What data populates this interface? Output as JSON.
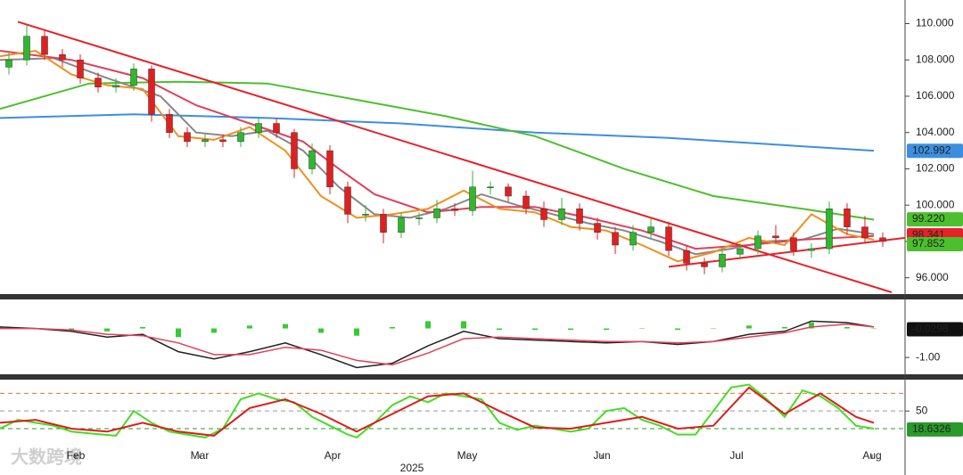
{
  "watermark": "大数跨境",
  "chart_data": [
    {
      "type": "candlestick",
      "x": [
        0.5,
        1.5,
        2.5,
        3.5,
        4.5,
        5.5,
        6.5,
        7.5,
        8.5,
        9.5,
        10.5,
        11.5,
        12.5,
        13.5,
        14.5,
        15.5,
        16.5,
        17.5,
        18.5,
        19.5,
        20.5,
        21.5,
        22.5,
        23.5,
        24.5,
        25.5,
        26.5,
        27.5,
        28.5,
        29.5,
        30.5,
        31.5,
        32.5,
        33.5,
        34.5,
        35.5,
        36.5,
        37.5,
        38.5,
        39.5,
        40.5,
        41.5,
        42.5,
        43.5,
        44.5,
        45.5,
        46.5,
        47.5,
        48.5,
        49.5
      ],
      "open": [
        107.6,
        108.0,
        109.3,
        108.3,
        108.0,
        107.0,
        106.5,
        106.6,
        107.5,
        105.0,
        104.0,
        103.5,
        103.6,
        103.5,
        104.0,
        104.5,
        104.0,
        102.0,
        103.0,
        101.0,
        99.5,
        99.5,
        98.5,
        99.3,
        99.3,
        99.8,
        99.7,
        101.0,
        101.0,
        100.5,
        99.8,
        99.2,
        99.8,
        99.0,
        98.5,
        97.8,
        98.5,
        98.8,
        97.5,
        96.8,
        96.6,
        97.3,
        97.6,
        98.3,
        98.2,
        97.5,
        97.6,
        99.8,
        98.8,
        98.2
      ],
      "high": [
        108.4,
        109.9,
        109.6,
        108.6,
        108.3,
        107.3,
        107.0,
        107.8,
        107.7,
        105.3,
        104.3,
        103.9,
        103.9,
        104.3,
        104.8,
        104.8,
        104.2,
        103.4,
        103.3,
        101.3,
        100.0,
        99.8,
        99.6,
        99.6,
        100.3,
        100.1,
        101.9,
        101.3,
        101.2,
        100.8,
        100.2,
        100.4,
        100.1,
        99.3,
        98.8,
        98.9,
        99.3,
        99.1,
        97.8,
        97.1,
        97.6,
        97.9,
        98.6,
        98.9,
        98.5,
        97.9,
        100.2,
        100.1,
        99.4,
        98.5
      ],
      "low": [
        107.2,
        107.7,
        108.0,
        107.6,
        106.7,
        106.2,
        106.2,
        106.3,
        104.6,
        103.7,
        103.2,
        103.2,
        103.2,
        103.2,
        103.7,
        103.7,
        101.5,
        101.7,
        100.6,
        99.0,
        99.1,
        97.9,
        98.2,
        98.9,
        99.0,
        99.4,
        99.4,
        100.6,
        100.2,
        99.5,
        98.8,
        98.9,
        98.6,
        98.1,
        97.3,
        97.5,
        98.2,
        97.2,
        96.4,
        96.2,
        96.3,
        97.0,
        97.3,
        97.9,
        97.2,
        97.1,
        97.3,
        98.4,
        97.9,
        97.7
      ],
      "close": [
        108.0,
        109.3,
        108.3,
        108.0,
        107.0,
        106.5,
        106.6,
        107.5,
        105.0,
        104.0,
        103.5,
        103.6,
        103.5,
        104.0,
        104.5,
        104.0,
        102.0,
        103.0,
        101.0,
        99.5,
        99.5,
        98.5,
        99.3,
        99.3,
        99.8,
        99.7,
        101.0,
        101.0,
        100.5,
        99.8,
        99.2,
        99.8,
        99.0,
        98.5,
        97.8,
        98.5,
        98.8,
        97.5,
        96.8,
        96.6,
        97.3,
        97.6,
        98.3,
        98.2,
        97.5,
        97.6,
        99.8,
        98.8,
        98.2,
        98.0
      ],
      "up_color": "#2eb82e",
      "down_color": "#e02020",
      "xlim": [
        0,
        50.75
      ],
      "ylim": [
        95.1,
        111.3
      ],
      "yticks": [
        {
          "value": 96,
          "label": "96.000"
        },
        {
          "value": 98,
          "label": "98.000"
        },
        {
          "value": 100,
          "label": "100.000"
        },
        {
          "value": 102,
          "label": "102.000"
        },
        {
          "value": 104,
          "label": "104.000"
        },
        {
          "value": 106,
          "label": "106.000"
        },
        {
          "value": 108,
          "label": "108.000"
        },
        {
          "value": 110,
          "label": "110.000"
        }
      ],
      "lines": [
        {
          "color": "#3b8fe0",
          "width": 2,
          "x": [
            0,
            7.5,
            15,
            22.5,
            30,
            37.5,
            49
          ],
          "values": [
            104.8,
            105.0,
            104.8,
            104.5,
            104.0,
            103.7,
            103.0
          ]
        },
        {
          "color": "#4cc02c",
          "width": 2,
          "x": [
            0,
            5,
            10,
            15,
            20,
            25,
            30,
            35,
            40,
            45,
            49
          ],
          "values": [
            105.3,
            106.7,
            106.8,
            106.7,
            105.8,
            104.9,
            103.8,
            102.0,
            100.5,
            99.8,
            99.2
          ]
        },
        {
          "color": "#888888",
          "width": 2,
          "x": [
            0,
            3,
            6,
            9,
            11,
            13,
            15,
            17,
            19,
            21,
            23,
            25,
            27,
            29,
            31,
            33,
            35,
            37,
            39,
            41,
            43,
            45,
            47,
            49
          ],
          "values": [
            108.0,
            108.1,
            107.0,
            106.0,
            104.0,
            103.8,
            104.1,
            103.0,
            101.0,
            99.5,
            99.3,
            99.8,
            100.6,
            100.0,
            99.5,
            99.0,
            98.6,
            98.0,
            97.3,
            97.6,
            98.0,
            98.1,
            98.7,
            98.4
          ]
        },
        {
          "color": "#e0405a",
          "width": 2,
          "x": [
            0,
            4,
            8,
            11,
            14,
            17,
            19,
            21,
            24,
            27,
            30,
            33,
            36,
            39,
            42,
            45,
            49
          ],
          "values": [
            108.5,
            108.0,
            107.0,
            105.5,
            104.5,
            103.5,
            102.0,
            100.6,
            99.6,
            99.9,
            99.9,
            99.3,
            98.6,
            97.6,
            97.8,
            98.1,
            98.3
          ]
        },
        {
          "color": "#f0901c",
          "width": 2,
          "x": [
            0,
            2,
            4,
            6,
            8,
            10,
            12,
            14,
            16,
            18,
            20,
            22,
            24,
            26,
            28,
            30,
            32,
            34,
            36,
            38,
            40,
            42,
            44,
            45.5,
            47.5,
            49
          ],
          "values": [
            108.2,
            108.5,
            107.2,
            106.6,
            106.4,
            103.8,
            103.6,
            104.3,
            103.0,
            100.5,
            99.3,
            99.5,
            99.8,
            100.8,
            99.8,
            99.6,
            98.8,
            98.6,
            97.8,
            96.9,
            97.4,
            98.2,
            97.8,
            99.5,
            98.4,
            98.1
          ]
        },
        {
          "color": "#e8202a",
          "width": 2,
          "x": [
            1,
            50
          ],
          "values": [
            110.1,
            95.2
          ]
        },
        {
          "color": "#e8202a",
          "width": 2,
          "x": [
            37.5,
            50.75
          ],
          "values": [
            96.6,
            98.2
          ]
        }
      ],
      "price_labels": [
        {
          "value": 102.992,
          "label": "102.992",
          "color": "#3b8fe0"
        },
        {
          "value": 99.22,
          "label": "99.220",
          "color": "#4cc02c"
        },
        {
          "value": 98.341,
          "label": "98.341",
          "color": "#e8202a"
        },
        {
          "value": 97.852,
          "label": "97.852",
          "color": "#4cc02c"
        }
      ]
    },
    {
      "type": "macd",
      "xlim": [
        0,
        50.75
      ],
      "ylim": [
        -1.58,
        1.0
      ],
      "yticks": [
        {
          "value": -1,
          "label": "-1.00"
        }
      ],
      "hist": {
        "color": "#33cc33",
        "x": [
          0,
          2,
          4,
          6,
          8,
          10,
          12,
          14,
          16,
          18,
          20,
          22,
          24,
          26,
          28,
          30,
          32,
          34,
          36,
          38,
          40,
          42,
          44,
          45.5,
          47.5,
          49
        ],
        "values": [
          0.05,
          0,
          -0.05,
          -0.1,
          0.05,
          -0.3,
          -0.15,
          0.1,
          0.15,
          -0.15,
          -0.25,
          0.05,
          0.25,
          0.25,
          -0.05,
          -0.05,
          -0.05,
          -0.05,
          0,
          -0.05,
          0,
          0.1,
          0.05,
          0.2,
          0.05,
          0
        ]
      },
      "lines": [
        {
          "color": "#222222",
          "width": 1.5,
          "x": [
            0,
            2,
            4,
            6,
            8,
            10,
            12,
            14,
            16,
            18,
            20,
            22,
            24,
            26,
            28,
            30,
            32,
            34,
            36,
            38,
            40,
            42,
            44,
            45.5,
            47.5,
            49
          ],
          "values": [
            0.05,
            0.0,
            -0.1,
            -0.3,
            -0.2,
            -0.8,
            -1.05,
            -0.8,
            -0.5,
            -0.9,
            -1.35,
            -1.2,
            -0.6,
            -0.1,
            -0.35,
            -0.4,
            -0.45,
            -0.5,
            -0.45,
            -0.55,
            -0.45,
            -0.2,
            -0.1,
            0.25,
            0.2,
            0.05
          ]
        },
        {
          "color": "#e0405a",
          "width": 1.5,
          "x": [
            0,
            2,
            4,
            6,
            8,
            10,
            12,
            14,
            16,
            18,
            20,
            22,
            24,
            26,
            28,
            30,
            32,
            34,
            36,
            38,
            40,
            42,
            44,
            45.5,
            47.5,
            49
          ],
          "values": [
            0.0,
            0.0,
            -0.05,
            -0.2,
            -0.25,
            -0.5,
            -0.9,
            -0.9,
            -0.65,
            -0.75,
            -1.1,
            -1.25,
            -0.85,
            -0.35,
            -0.3,
            -0.35,
            -0.4,
            -0.45,
            -0.45,
            -0.5,
            -0.45,
            -0.3,
            -0.15,
            0.05,
            0.15,
            0.05
          ]
        }
      ],
      "price_labels": [
        {
          "value": -0.0298,
          "label": "-0.0298",
          "color": "#111111"
        }
      ]
    },
    {
      "type": "stochastic",
      "xlim": [
        0,
        50.75
      ],
      "ylim": [
        -30,
        103.3
      ],
      "yticks": [
        50
      ],
      "levels": [
        {
          "value": 80,
          "color": "#f07030"
        },
        {
          "value": 50,
          "color": "#999999"
        },
        {
          "value": 20,
          "color": "#2a9a2a"
        }
      ],
      "lines": [
        {
          "color": "#44dd22",
          "width": 2,
          "x": [
            0,
            1,
            2,
            3,
            4,
            5,
            6.5,
            7.5,
            8.5,
            9.5,
            10.5,
            11.5,
            12.5,
            13.5,
            14.5,
            15.5,
            16.5,
            17.5,
            18.5,
            19.5,
            20,
            21,
            22,
            23,
            24,
            25,
            26,
            27,
            28,
            29,
            30,
            31,
            32,
            33,
            34,
            35,
            36,
            37,
            38,
            39,
            40,
            41,
            42,
            43,
            44,
            45,
            46,
            47,
            48,
            49
          ],
          "values": [
            20,
            35,
            30,
            25,
            15,
            12,
            8,
            50,
            30,
            15,
            10,
            5,
            20,
            70,
            80,
            70,
            65,
            40,
            25,
            10,
            5,
            30,
            60,
            75,
            65,
            80,
            75,
            70,
            30,
            18,
            25,
            20,
            15,
            20,
            50,
            55,
            35,
            25,
            10,
            10,
            50,
            90,
            95,
            70,
            40,
            85,
            75,
            55,
            25,
            20
          ]
        },
        {
          "color": "#dd1c1c",
          "width": 2,
          "x": [
            0,
            2,
            4,
            6,
            8,
            10,
            12,
            14,
            16,
            18,
            20,
            22,
            24,
            26,
            28,
            30,
            32,
            34,
            36,
            38,
            40,
            42,
            44,
            46,
            48,
            49
          ],
          "values": [
            30,
            35,
            20,
            15,
            30,
            15,
            8,
            55,
            70,
            45,
            15,
            45,
            75,
            80,
            50,
            22,
            20,
            30,
            40,
            20,
            25,
            90,
            45,
            80,
            40,
            30
          ]
        }
      ],
      "price_labels": [
        {
          "value": 18.6326,
          "label": "18.6326",
          "color": "#2a9a2a"
        }
      ],
      "xticks": [
        {
          "value": 4.25,
          "label": "Feb"
        },
        {
          "value": 11.2,
          "label": "Mar"
        },
        {
          "value": 18.65,
          "label": "Apr"
        },
        {
          "value": 26.2,
          "label": "May"
        },
        {
          "value": 33.75,
          "label": "Jun"
        },
        {
          "value": 41.3,
          "label": "Jul"
        },
        {
          "value": 48.9,
          "label": "Aug"
        }
      ],
      "xlabel": "2025"
    }
  ]
}
